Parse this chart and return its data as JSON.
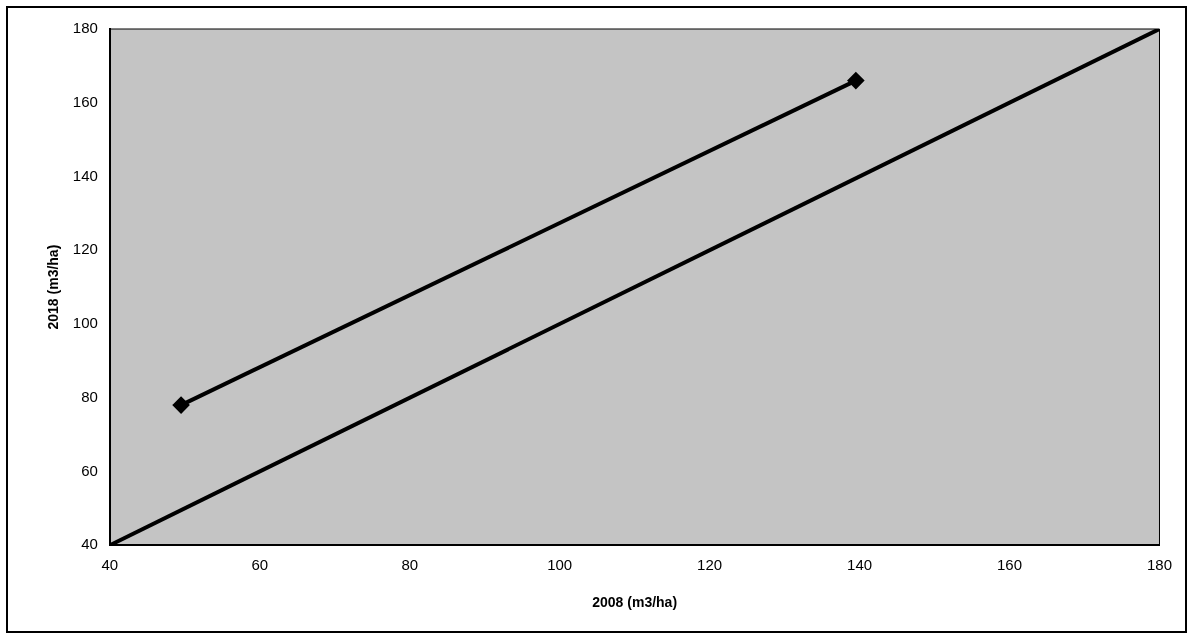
{
  "chart_data": {
    "type": "line",
    "xlabel": "2008 (m3/ha)",
    "ylabel": "2018 (m3/ha)",
    "xlim": [
      40,
      180
    ],
    "xticks": [
      40,
      60,
      80,
      100,
      120,
      140,
      160,
      180
    ],
    "ylim": [
      40,
      180
    ],
    "yticks": [
      40,
      60,
      80,
      100,
      120,
      140,
      160,
      180
    ],
    "grid": false,
    "legend": false,
    "series": [
      {
        "color": "#000000",
        "x": [
          49.5,
          139.5
        ],
        "values": [
          78,
          166
        ],
        "marker": "diamond"
      },
      {
        "color": "#000000",
        "x": [
          40,
          180
        ],
        "values": [
          40,
          180
        ],
        "marker": "none"
      }
    ]
  }
}
